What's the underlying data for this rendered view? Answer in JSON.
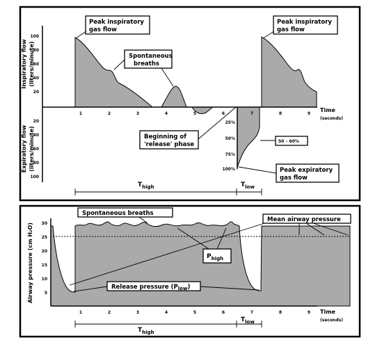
{
  "top_panel": {
    "insp_axis_label": "Inspiratory flow",
    "insp_axis_unit": "(liters/minute)",
    "exp_axis_label": "Expiratory flow",
    "exp_axis_unit": "(liters/minute)",
    "y_ticks_up": [
      "100",
      "80",
      "60",
      "40",
      "20"
    ],
    "y_ticks_down": [
      "20",
      "40",
      "60",
      "80",
      "100"
    ],
    "x_ticks": [
      "1",
      "2",
      "3",
      "4",
      "5",
      "6",
      "7",
      "8",
      "9"
    ],
    "time_label": "Time",
    "time_unit": "(seconds)",
    "pct_ticks": [
      "25%",
      "50%",
      "75%",
      "100%"
    ],
    "ann_peak_insp_1a": "Peak inspiratory",
    "ann_peak_insp_1b": "gas flow",
    "ann_peak_insp_2a": "Peak inspiratory",
    "ann_peak_insp_2b": "gas flow",
    "ann_spont_a": "Spontaneous",
    "ann_spont_b": "breaths",
    "ann_release_a": "Beginning of",
    "ann_release_b": "'release' phase",
    "ann_pct": "50 – 60%",
    "ann_peak_exp_a": "Peak expiratory",
    "ann_peak_exp_b": "gas flow",
    "t_high": "T",
    "t_high_sub": "high",
    "t_low": "T",
    "t_low_sub": "low"
  },
  "bottom_panel": {
    "axis_label": "Airway pressure (cm H₂O)",
    "y_ticks": [
      "30",
      "25",
      "20",
      "15",
      "10",
      "5"
    ],
    "x_ticks": [
      "1",
      "2",
      "3",
      "4",
      "5",
      "6",
      "7",
      "8",
      "9"
    ],
    "time_label": "Time",
    "time_unit": "(seconds)",
    "ann_spont": "Spontaneous breaths",
    "ann_mean": "Mean airway pressure",
    "ann_phigh": "P",
    "ann_phigh_sub": "high",
    "ann_release": "Release pressure (P",
    "ann_release_sub": "low",
    "ann_release_end": ")",
    "t_high": "T",
    "t_high_sub": "high",
    "t_low": "T",
    "t_low_sub": "low"
  },
  "colors": {
    "fill": "#aaaaaa",
    "line": "#000000",
    "background": "#ffffff"
  }
}
